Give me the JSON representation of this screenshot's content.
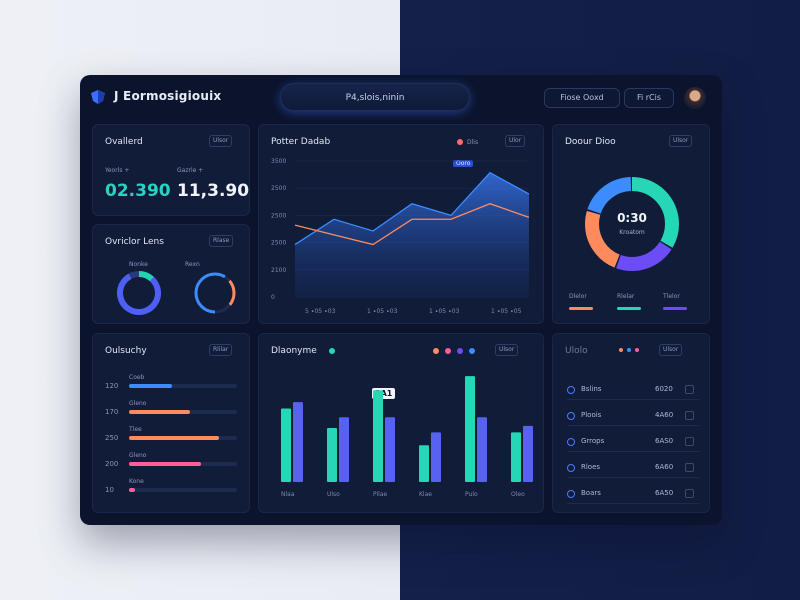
{
  "header": {
    "brand": "J Eormosigiouix",
    "search_text": "P4,slois,ninin",
    "btn_a": "Fiose Ooxd",
    "btn_b": "Fi rCis"
  },
  "card_overview": {
    "title": "Ovallerd",
    "pill": "Ulsor",
    "label_a": "Yeorls +",
    "label_b": "Gazrle +",
    "value_a": "02.390",
    "value_b": "11,3.90"
  },
  "card_donuts": {
    "title": "Ovriclor Lens",
    "pill": "Rlase",
    "label_a": "Nonke",
    "label_b": "Rexn"
  },
  "card_area": {
    "title": "Potter Dadab",
    "legend": "Dlis",
    "badge": "Ooro",
    "pill": "Ulor",
    "y_ticks": [
      "3500",
      "2500",
      "2500",
      "2500",
      "2100",
      "0"
    ],
    "x_ticks": [
      "5 ∙05 ∙03",
      "1 ∙05 ∙03",
      "1 ∙05 ∙03",
      "1 ∙05 ∙05"
    ]
  },
  "card_ring": {
    "title": "Doour Dioo",
    "pill": "Ulsor",
    "center_value": "0:30",
    "center_label": "Kroatom",
    "legend": [
      "Dlelor",
      "Rlelar",
      "Tlelor"
    ]
  },
  "card_hbar": {
    "title": "Oulsuchy",
    "pill": "Rlilar",
    "rows": [
      {
        "label": "Coeb",
        "value": "120"
      },
      {
        "label": "Gleno",
        "value": "170"
      },
      {
        "label": "Tlee",
        "value": "250"
      },
      {
        "label": "Gleno",
        "value": "200"
      },
      {
        "label": "Kone",
        "value": "10"
      }
    ]
  },
  "card_vbar": {
    "title": "Dlaonyme",
    "pill": "Ulsor",
    "badge": "1A1",
    "x_ticks": [
      "Nlaa",
      "Ulso",
      "Pilae",
      "Klae",
      "Pulo",
      "Oleo"
    ]
  },
  "card_list": {
    "title": "Ulolo",
    "pill": "Ulsor",
    "rows": [
      {
        "label": "Bslins",
        "value": "6020"
      },
      {
        "label": "Ploois",
        "value": "4A60"
      },
      {
        "label": "Grrops",
        "value": "6AS0"
      },
      {
        "label": "Rloes",
        "value": "6A60"
      },
      {
        "label": "Boars",
        "value": "6A50"
      }
    ]
  },
  "colors": {
    "accent_blue": "#3c8cff",
    "accent_teal": "#25d7b4",
    "accent_orange": "#ff8a5c",
    "accent_purple": "#6b4cf5",
    "accent_pink": "#ff5c9a"
  },
  "chart_data": [
    {
      "type": "area",
      "x": [
        "5 ∙05 ∙03",
        "",
        "1 ∙05 ∙03",
        "",
        "1 ∙05 ∙03",
        "",
        "1 ∙05 ∙05"
      ],
      "series": [
        {
          "name": "",
          "values": [
            1350,
            2000,
            1700,
            2400,
            2100,
            3200,
            2650
          ]
        },
        {
          "name": "",
          "values": [
            1850,
            1600,
            1350,
            2000,
            2000,
            2400,
            2050
          ]
        }
      ],
      "ylim": [
        0,
        3500
      ]
    },
    {
      "type": "pie",
      "labels": [
        "Dlelor",
        "Rlelar",
        "Tlelor",
        ""
      ],
      "values": [
        34,
        22,
        24,
        20
      ]
    },
    {
      "type": "bar",
      "categories": [
        "Coeb",
        "Gleno",
        "Tlee",
        "Gleno",
        "Kone"
      ],
      "values": [
        120,
        170,
        250,
        200,
        10
      ]
    },
    {
      "type": "bar",
      "categories": [
        "Nlaa",
        "Ulso",
        "Pilae",
        "Klae",
        "Pulo",
        "Oleo"
      ],
      "series": [
        {
          "name": "",
          "values": [
            68,
            50,
            85,
            34,
            98,
            46
          ]
        },
        {
          "name": "",
          "values": [
            74,
            60,
            60,
            46,
            60,
            52
          ]
        }
      ],
      "ylim": [
        0,
        100
      ]
    }
  ]
}
